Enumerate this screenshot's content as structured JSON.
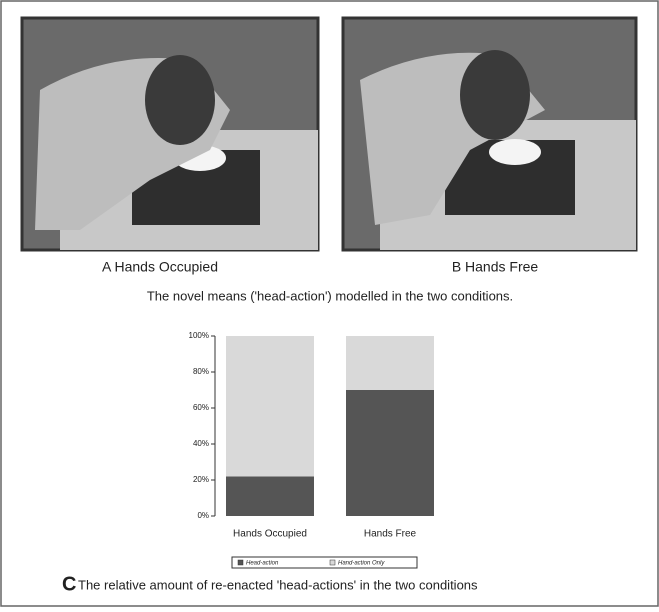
{
  "panels": [
    {
      "label": "A Hands Occupied"
    },
    {
      "label": "B Hands Free"
    }
  ],
  "caption_ab": "The novel means ('head-action') modelled in the two conditions.",
  "chart_data": {
    "type": "bar",
    "stacked": true,
    "categories": [
      "Hands Occupied",
      "Hands Free"
    ],
    "series": [
      {
        "name": "Head-action",
        "color": "#555555",
        "values": [
          22,
          70
        ]
      },
      {
        "name": "Hand-action Only",
        "color": "#d9d9d9",
        "values": [
          78,
          30
        ]
      }
    ],
    "ylim": [
      0,
      100
    ],
    "yticks": [
      {
        "value": 0,
        "label": "0%"
      },
      {
        "value": 20,
        "label": "20%"
      },
      {
        "value": 40,
        "label": "40%"
      },
      {
        "value": 60,
        "label": "60%"
      },
      {
        "value": 80,
        "label": "80%"
      },
      {
        "value": 100,
        "label": "100%"
      }
    ],
    "legend": "bottom"
  },
  "caption_c": {
    "letter": "C",
    "text": "The relative amount of re-enacted 'head-actions' in the two conditions"
  }
}
